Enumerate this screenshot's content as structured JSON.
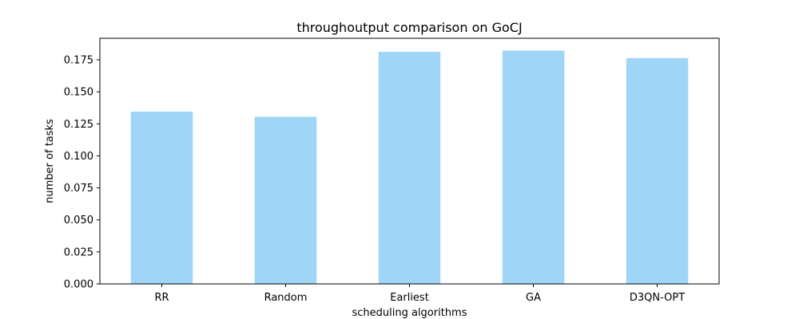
{
  "chart_data": {
    "type": "bar",
    "title": "throughoutput comparison on GoCJ",
    "xlabel": "scheduling algorithms",
    "ylabel": "number of tasks",
    "categories": [
      "RR",
      "Random",
      "Earliest",
      "GA",
      "D3QN-OPT"
    ],
    "values": [
      0.1345,
      0.1305,
      0.1812,
      0.1822,
      0.1763
    ],
    "ylim": [
      0,
      0.1918
    ],
    "yticks": [
      "0.000",
      "0.025",
      "0.050",
      "0.075",
      "0.100",
      "0.125",
      "0.150",
      "0.175"
    ],
    "bar_color": "#9fd6f7",
    "grid": false,
    "legend": "none"
  }
}
